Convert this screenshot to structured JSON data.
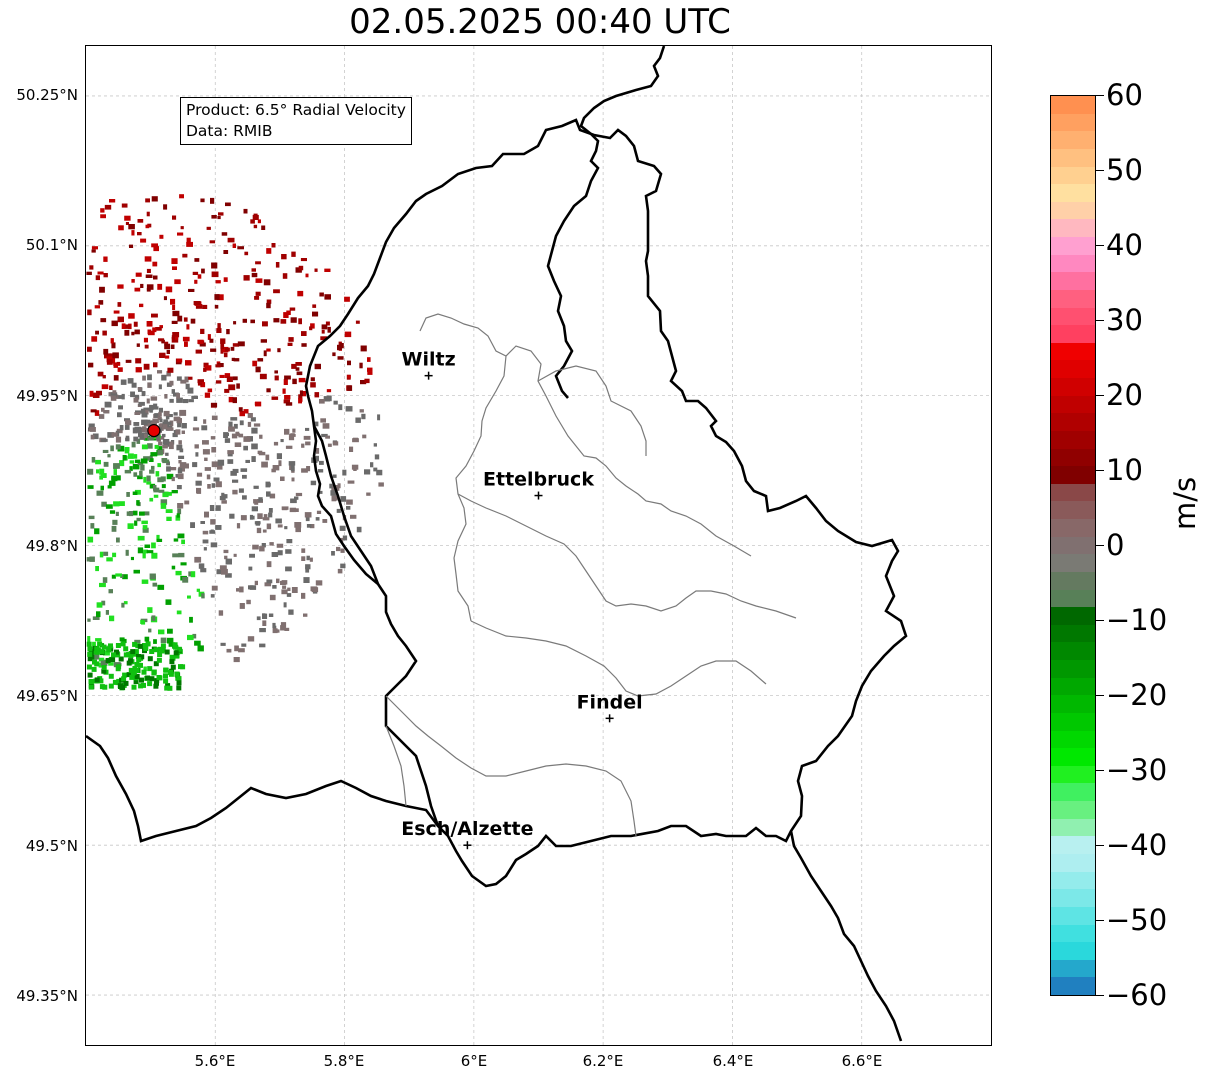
{
  "title": "02.05.2025 00:40 UTC",
  "info": {
    "product": "Product: 6.5° Radial Velocity",
    "data_source": "Data: RMIB"
  },
  "axes": {
    "lat_ticks": [
      "50.25°N",
      "50.1°N",
      "49.95°N",
      "49.8°N",
      "49.65°N",
      "49.5°N",
      "49.35°N"
    ],
    "lon_ticks": [
      "5.6°E",
      "5.8°E",
      "6°E",
      "6.2°E",
      "6.4°E",
      "6.6°E"
    ],
    "lon_range": [
      5.4,
      6.8
    ],
    "lat_range": [
      49.3,
      50.3
    ],
    "grid": true
  },
  "radar_site": {
    "lon": 5.505,
    "lat": 49.915,
    "color": "#e60000"
  },
  "cities": [
    {
      "name": "Wiltz",
      "lon": 5.93,
      "lat": 49.97
    },
    {
      "name": "Ettelbruck",
      "lon": 6.1,
      "lat": 49.85
    },
    {
      "name": "Findel",
      "lon": 6.21,
      "lat": 49.627
    },
    {
      "name": "Esch/Alzette",
      "lon": 5.99,
      "lat": 49.5
    }
  ],
  "colorbar": {
    "unit": "m/s",
    "min": -60,
    "max": 60,
    "tick_labels": [
      "60",
      "50",
      "40",
      "30",
      "20",
      "10",
      "0",
      "−10",
      "−20",
      "−30",
      "−40",
      "−50",
      "−60"
    ],
    "colors": [
      "#2080c0",
      "#24a8cc",
      "#2ad8dc",
      "#40e0e0",
      "#5ee4e4",
      "#7ce8e8",
      "#94ecec",
      "#aeeef0",
      "#b8f0f0",
      "#90f0b0",
      "#68f080",
      "#40f060",
      "#20f020",
      "#00e800",
      "#00d800",
      "#00c800",
      "#00b800",
      "#00a800",
      "#009800",
      "#008800",
      "#007800",
      "#006800",
      "#588058",
      "#647a60",
      "#7a7a74",
      "#807070",
      "#886868",
      "#8a5a5a",
      "#8a4848",
      "#800000",
      "#900000",
      "#a00000",
      "#b00000",
      "#c00000",
      "#d00000",
      "#e00000",
      "#f00000",
      "#ff4060",
      "#ff5070",
      "#ff6080",
      "#ff70a0",
      "#ff88c0",
      "#ffa0d0",
      "#ffb8c0",
      "#ffd0a8",
      "#ffe0a0",
      "#ffd090",
      "#ffc080",
      "#ffb070",
      "#ffa060",
      "#ff9050"
    ]
  },
  "echo_colors": [
    "#800000",
    "#a00000",
    "#c00000",
    "#807070",
    "#6a6a6a",
    "#00a000",
    "#20e020",
    "#588058",
    "#c06080"
  ]
}
